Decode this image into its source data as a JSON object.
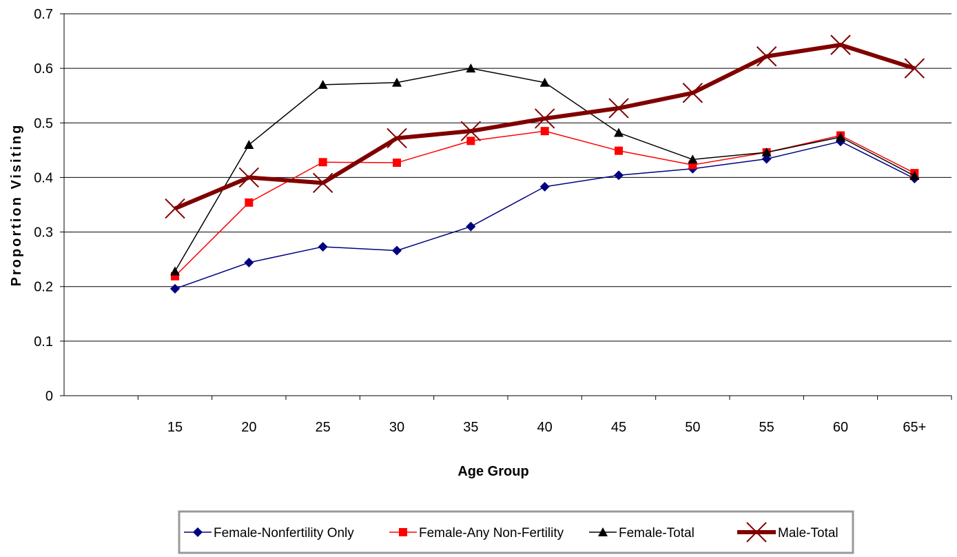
{
  "chart_data": {
    "type": "line",
    "xlabel": "Age Group",
    "ylabel": "Proportion Visiting",
    "categories": [
      "15",
      "20",
      "25",
      "30",
      "35",
      "40",
      "45",
      "50",
      "55",
      "60",
      "65+"
    ],
    "ylim": [
      0,
      0.7
    ],
    "yticks": [
      "0",
      "0.1",
      "0.2",
      "0.3",
      "0.4",
      "0.5",
      "0.6",
      "0.7"
    ],
    "grid": true,
    "legend_position": "bottom",
    "series": [
      {
        "name": "Female-Nonfertility Only",
        "color": "#000080",
        "marker": "diamond",
        "values": [
          0.196,
          0.244,
          0.273,
          0.266,
          0.31,
          0.383,
          0.404,
          0.416,
          0.434,
          0.466,
          0.398
        ]
      },
      {
        "name": "Female-Any Non-Fertility",
        "color": "#ff0000",
        "marker": "square",
        "values": [
          0.219,
          0.354,
          0.428,
          0.427,
          0.467,
          0.485,
          0.449,
          0.423,
          0.446,
          0.477,
          0.408
        ]
      },
      {
        "name": "Female-Total",
        "color": "#000000",
        "marker": "triangle",
        "values": [
          0.228,
          0.46,
          0.57,
          0.574,
          0.6,
          0.574,
          0.482,
          0.433,
          0.446,
          0.474,
          0.403
        ]
      },
      {
        "name": "Male-Total",
        "color": "#800000",
        "marker": "x",
        "values": [
          0.343,
          0.4,
          0.39,
          0.472,
          0.485,
          0.508,
          0.527,
          0.555,
          0.622,
          0.643,
          0.6
        ]
      }
    ]
  }
}
